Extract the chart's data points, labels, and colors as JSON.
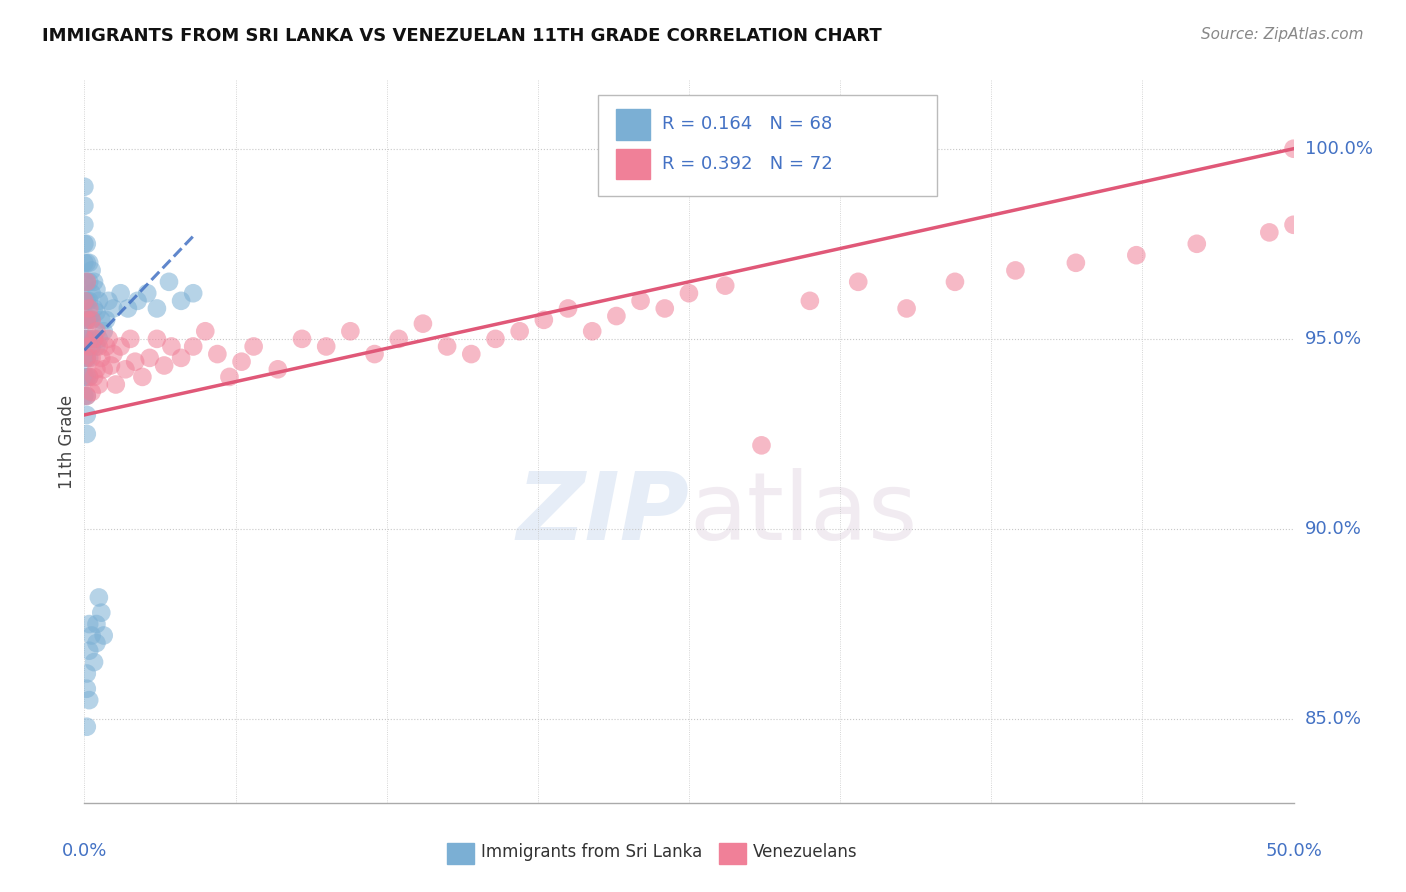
{
  "title": "IMMIGRANTS FROM SRI LANKA VS VENEZUELAN 11TH GRADE CORRELATION CHART",
  "source": "Source: ZipAtlas.com",
  "ylabel": "11th Grade",
  "sri_lanka_color": "#7bafd4",
  "venezuelan_color": "#f08098",
  "sri_lanka_line_color": "#4472c4",
  "venezuelan_line_color": "#e05878",
  "background_color": "#ffffff",
  "grid_color": "#c8c8c8",
  "axis_label_color": "#4472c4",
  "xlim": [
    0.0,
    0.5
  ],
  "ylim": [
    0.828,
    1.018
  ],
  "ytick_positions": [
    0.85,
    0.9,
    0.95,
    1.0
  ],
  "ytick_labels": [
    "85.0%",
    "90.0%",
    "95.0%",
    "100.0%"
  ],
  "sri_lanka_x": [
    0.0,
    0.0,
    0.0,
    0.0,
    0.0,
    0.0,
    0.0,
    0.0,
    0.0,
    0.0,
    0.0,
    0.0,
    0.001,
    0.001,
    0.001,
    0.001,
    0.001,
    0.001,
    0.001,
    0.001,
    0.001,
    0.001,
    0.001,
    0.002,
    0.002,
    0.002,
    0.002,
    0.002,
    0.002,
    0.002,
    0.003,
    0.003,
    0.003,
    0.003,
    0.004,
    0.004,
    0.004,
    0.005,
    0.005,
    0.005,
    0.006,
    0.006,
    0.007,
    0.008,
    0.009,
    0.01,
    0.012,
    0.015,
    0.018,
    0.022,
    0.026,
    0.03,
    0.035,
    0.04,
    0.045,
    0.005,
    0.005,
    0.006,
    0.007,
    0.008,
    0.001,
    0.001,
    0.002,
    0.002,
    0.003,
    0.004,
    0.002,
    0.001
  ],
  "sri_lanka_y": [
    0.99,
    0.985,
    0.98,
    0.975,
    0.97,
    0.965,
    0.96,
    0.955,
    0.95,
    0.945,
    0.94,
    0.935,
    0.975,
    0.97,
    0.965,
    0.96,
    0.955,
    0.95,
    0.945,
    0.94,
    0.935,
    0.93,
    0.925,
    0.97,
    0.965,
    0.96,
    0.955,
    0.95,
    0.945,
    0.94,
    0.968,
    0.962,
    0.955,
    0.948,
    0.965,
    0.958,
    0.95,
    0.963,
    0.957,
    0.948,
    0.96,
    0.95,
    0.955,
    0.952,
    0.955,
    0.96,
    0.958,
    0.962,
    0.958,
    0.96,
    0.962,
    0.958,
    0.965,
    0.96,
    0.962,
    0.87,
    0.875,
    0.882,
    0.878,
    0.872,
    0.862,
    0.858,
    0.868,
    0.875,
    0.872,
    0.865,
    0.855,
    0.848
  ],
  "venezuelan_x": [
    0.0,
    0.0,
    0.001,
    0.001,
    0.001,
    0.001,
    0.002,
    0.002,
    0.002,
    0.003,
    0.003,
    0.003,
    0.004,
    0.004,
    0.005,
    0.005,
    0.006,
    0.006,
    0.007,
    0.008,
    0.009,
    0.01,
    0.011,
    0.012,
    0.013,
    0.015,
    0.017,
    0.019,
    0.021,
    0.024,
    0.027,
    0.03,
    0.033,
    0.036,
    0.04,
    0.045,
    0.05,
    0.055,
    0.06,
    0.065,
    0.07,
    0.08,
    0.09,
    0.1,
    0.11,
    0.12,
    0.13,
    0.14,
    0.15,
    0.16,
    0.17,
    0.18,
    0.19,
    0.2,
    0.21,
    0.22,
    0.23,
    0.24,
    0.25,
    0.265,
    0.28,
    0.3,
    0.32,
    0.34,
    0.36,
    0.385,
    0.41,
    0.435,
    0.46,
    0.49,
    0.5,
    0.5
  ],
  "venezuelan_y": [
    0.96,
    0.95,
    0.965,
    0.955,
    0.945,
    0.935,
    0.958,
    0.948,
    0.94,
    0.955,
    0.945,
    0.936,
    0.95,
    0.94,
    0.952,
    0.942,
    0.948,
    0.938,
    0.945,
    0.942,
    0.948,
    0.95,
    0.943,
    0.946,
    0.938,
    0.948,
    0.942,
    0.95,
    0.944,
    0.94,
    0.945,
    0.95,
    0.943,
    0.948,
    0.945,
    0.948,
    0.952,
    0.946,
    0.94,
    0.944,
    0.948,
    0.942,
    0.95,
    0.948,
    0.952,
    0.946,
    0.95,
    0.954,
    0.948,
    0.946,
    0.95,
    0.952,
    0.955,
    0.958,
    0.952,
    0.956,
    0.96,
    0.958,
    0.962,
    0.964,
    0.922,
    0.96,
    0.965,
    0.958,
    0.965,
    0.968,
    0.97,
    0.972,
    0.975,
    0.978,
    0.98,
    1.0
  ],
  "sri_lanka_line_x": [
    0.0,
    0.045
  ],
  "sri_lanka_line_y": [
    0.947,
    0.977
  ],
  "venezuelan_line_x": [
    0.0,
    0.5
  ],
  "venezuelan_line_y": [
    0.93,
    1.0
  ]
}
